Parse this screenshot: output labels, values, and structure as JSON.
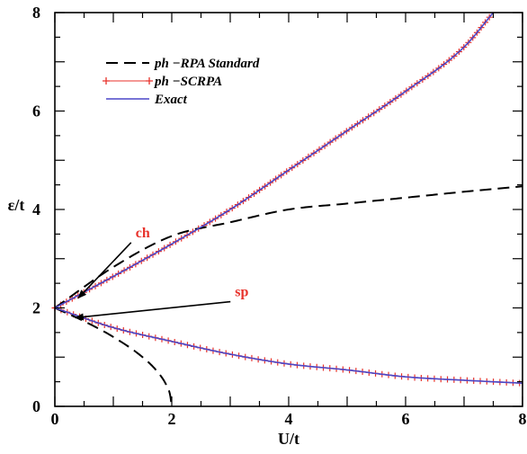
{
  "chart_data": {
    "type": "line",
    "xlabel": "U/t",
    "ylabel": "ε/t",
    "xlim": [
      0,
      8
    ],
    "ylim": [
      0,
      8
    ],
    "x_ticks": [
      "0",
      "2",
      "4",
      "6",
      "8"
    ],
    "y_ticks": [
      "0",
      "2",
      "4",
      "6",
      "8"
    ],
    "grid": false,
    "legend_position": "top-left",
    "series": [
      {
        "name": "ph −RPA Standard",
        "style": "dashed",
        "color": "#000000",
        "segments": [
          [
            [
              0,
              2.0
            ],
            [
              1,
              2.83
            ],
            [
              2,
              3.46
            ],
            [
              3,
              3.74
            ],
            [
              4,
              4.0
            ],
            [
              5,
              4.12
            ],
            [
              6,
              4.24
            ],
            [
              7,
              4.36
            ],
            [
              8,
              4.47
            ]
          ],
          [
            [
              0,
              2.0
            ],
            [
              0.5,
              1.73
            ],
            [
              1,
              1.41
            ],
            [
              1.5,
              1.0
            ],
            [
              1.75,
              0.71
            ],
            [
              1.9,
              0.45
            ],
            [
              1.97,
              0.24
            ],
            [
              2,
              0
            ]
          ]
        ]
      },
      {
        "name": "ph −SCRPA",
        "style": "markers",
        "color": "#e8322b",
        "marker": "+",
        "segments": [
          [
            [
              0,
              2.0
            ],
            [
              1,
              2.64
            ],
            [
              2,
              3.3
            ],
            [
              3,
              4.0
            ],
            [
              4,
              4.8
            ],
            [
              5,
              5.6
            ],
            [
              6,
              6.4
            ],
            [
              7,
              7.3
            ],
            [
              7.5,
              8.0
            ]
          ],
          [
            [
              0,
              2.0
            ],
            [
              1,
              1.6
            ],
            [
              2,
              1.32
            ],
            [
              3,
              1.06
            ],
            [
              4,
              0.86
            ],
            [
              5,
              0.74
            ],
            [
              6,
              0.6
            ],
            [
              7,
              0.53
            ],
            [
              8,
              0.47
            ]
          ]
        ]
      },
      {
        "name": "Exact",
        "style": "solid",
        "color": "#4b47c8",
        "segments": [
          [
            [
              0,
              2.0
            ],
            [
              1,
              2.64
            ],
            [
              2,
              3.3
            ],
            [
              3,
              4.0
            ],
            [
              4,
              4.8
            ],
            [
              5,
              5.6
            ],
            [
              6,
              6.4
            ],
            [
              7,
              7.3
            ],
            [
              7.5,
              8.0
            ]
          ],
          [
            [
              0,
              2.0
            ],
            [
              1,
              1.6
            ],
            [
              2,
              1.32
            ],
            [
              3,
              1.06
            ],
            [
              4,
              0.86
            ],
            [
              5,
              0.74
            ],
            [
              6,
              0.6
            ],
            [
              7,
              0.53
            ],
            [
              8,
              0.47
            ]
          ]
        ]
      }
    ],
    "annotations": [
      {
        "text": "ch",
        "label_at": [
          1.35,
          3.4
        ],
        "arrow_to": [
          0.4,
          2.2
        ]
      },
      {
        "text": "sp",
        "label_at": [
          3.05,
          2.2
        ],
        "arrow_to": [
          0.35,
          1.8
        ]
      }
    ]
  }
}
